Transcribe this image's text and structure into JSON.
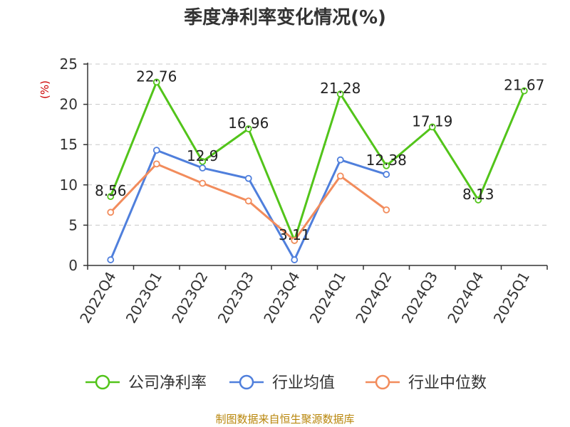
{
  "chart_data": {
    "type": "line",
    "title": "季度净利率变化情况(%)",
    "ylabel": "(%)",
    "xlabel": "",
    "categories": [
      "2022Q4",
      "2023Q1",
      "2023Q2",
      "2023Q3",
      "2023Q4",
      "2024Q1",
      "2024Q2",
      "2024Q3",
      "2024Q4",
      "2025Q1"
    ],
    "ylim": [
      0,
      25
    ],
    "yticks": [
      0,
      5,
      10,
      15,
      20,
      25
    ],
    "grid": true,
    "legend_position": "bottom",
    "series": [
      {
        "name": "公司净利率",
        "color": "#52c41a",
        "values": [
          8.56,
          22.76,
          12.9,
          16.96,
          3.11,
          21.28,
          12.38,
          17.19,
          8.13,
          21.67
        ],
        "labels": [
          "8.56",
          "22.76",
          "12.9",
          "16.96",
          "3.11",
          "21.28",
          "12.38",
          "17.19",
          "8.13",
          "21.67"
        ]
      },
      {
        "name": "行业均值",
        "color": "#4f7fdc",
        "values": [
          0.7,
          14.3,
          12.1,
          10.8,
          0.7,
          13.1,
          11.3,
          null,
          null,
          null
        ]
      },
      {
        "name": "行业中位数",
        "color": "#f28c5c",
        "values": [
          6.6,
          12.6,
          10.2,
          8.0,
          3.1,
          11.1,
          6.9,
          null,
          null,
          null
        ]
      }
    ],
    "source": "制图数据来自恒生聚源数据库"
  }
}
